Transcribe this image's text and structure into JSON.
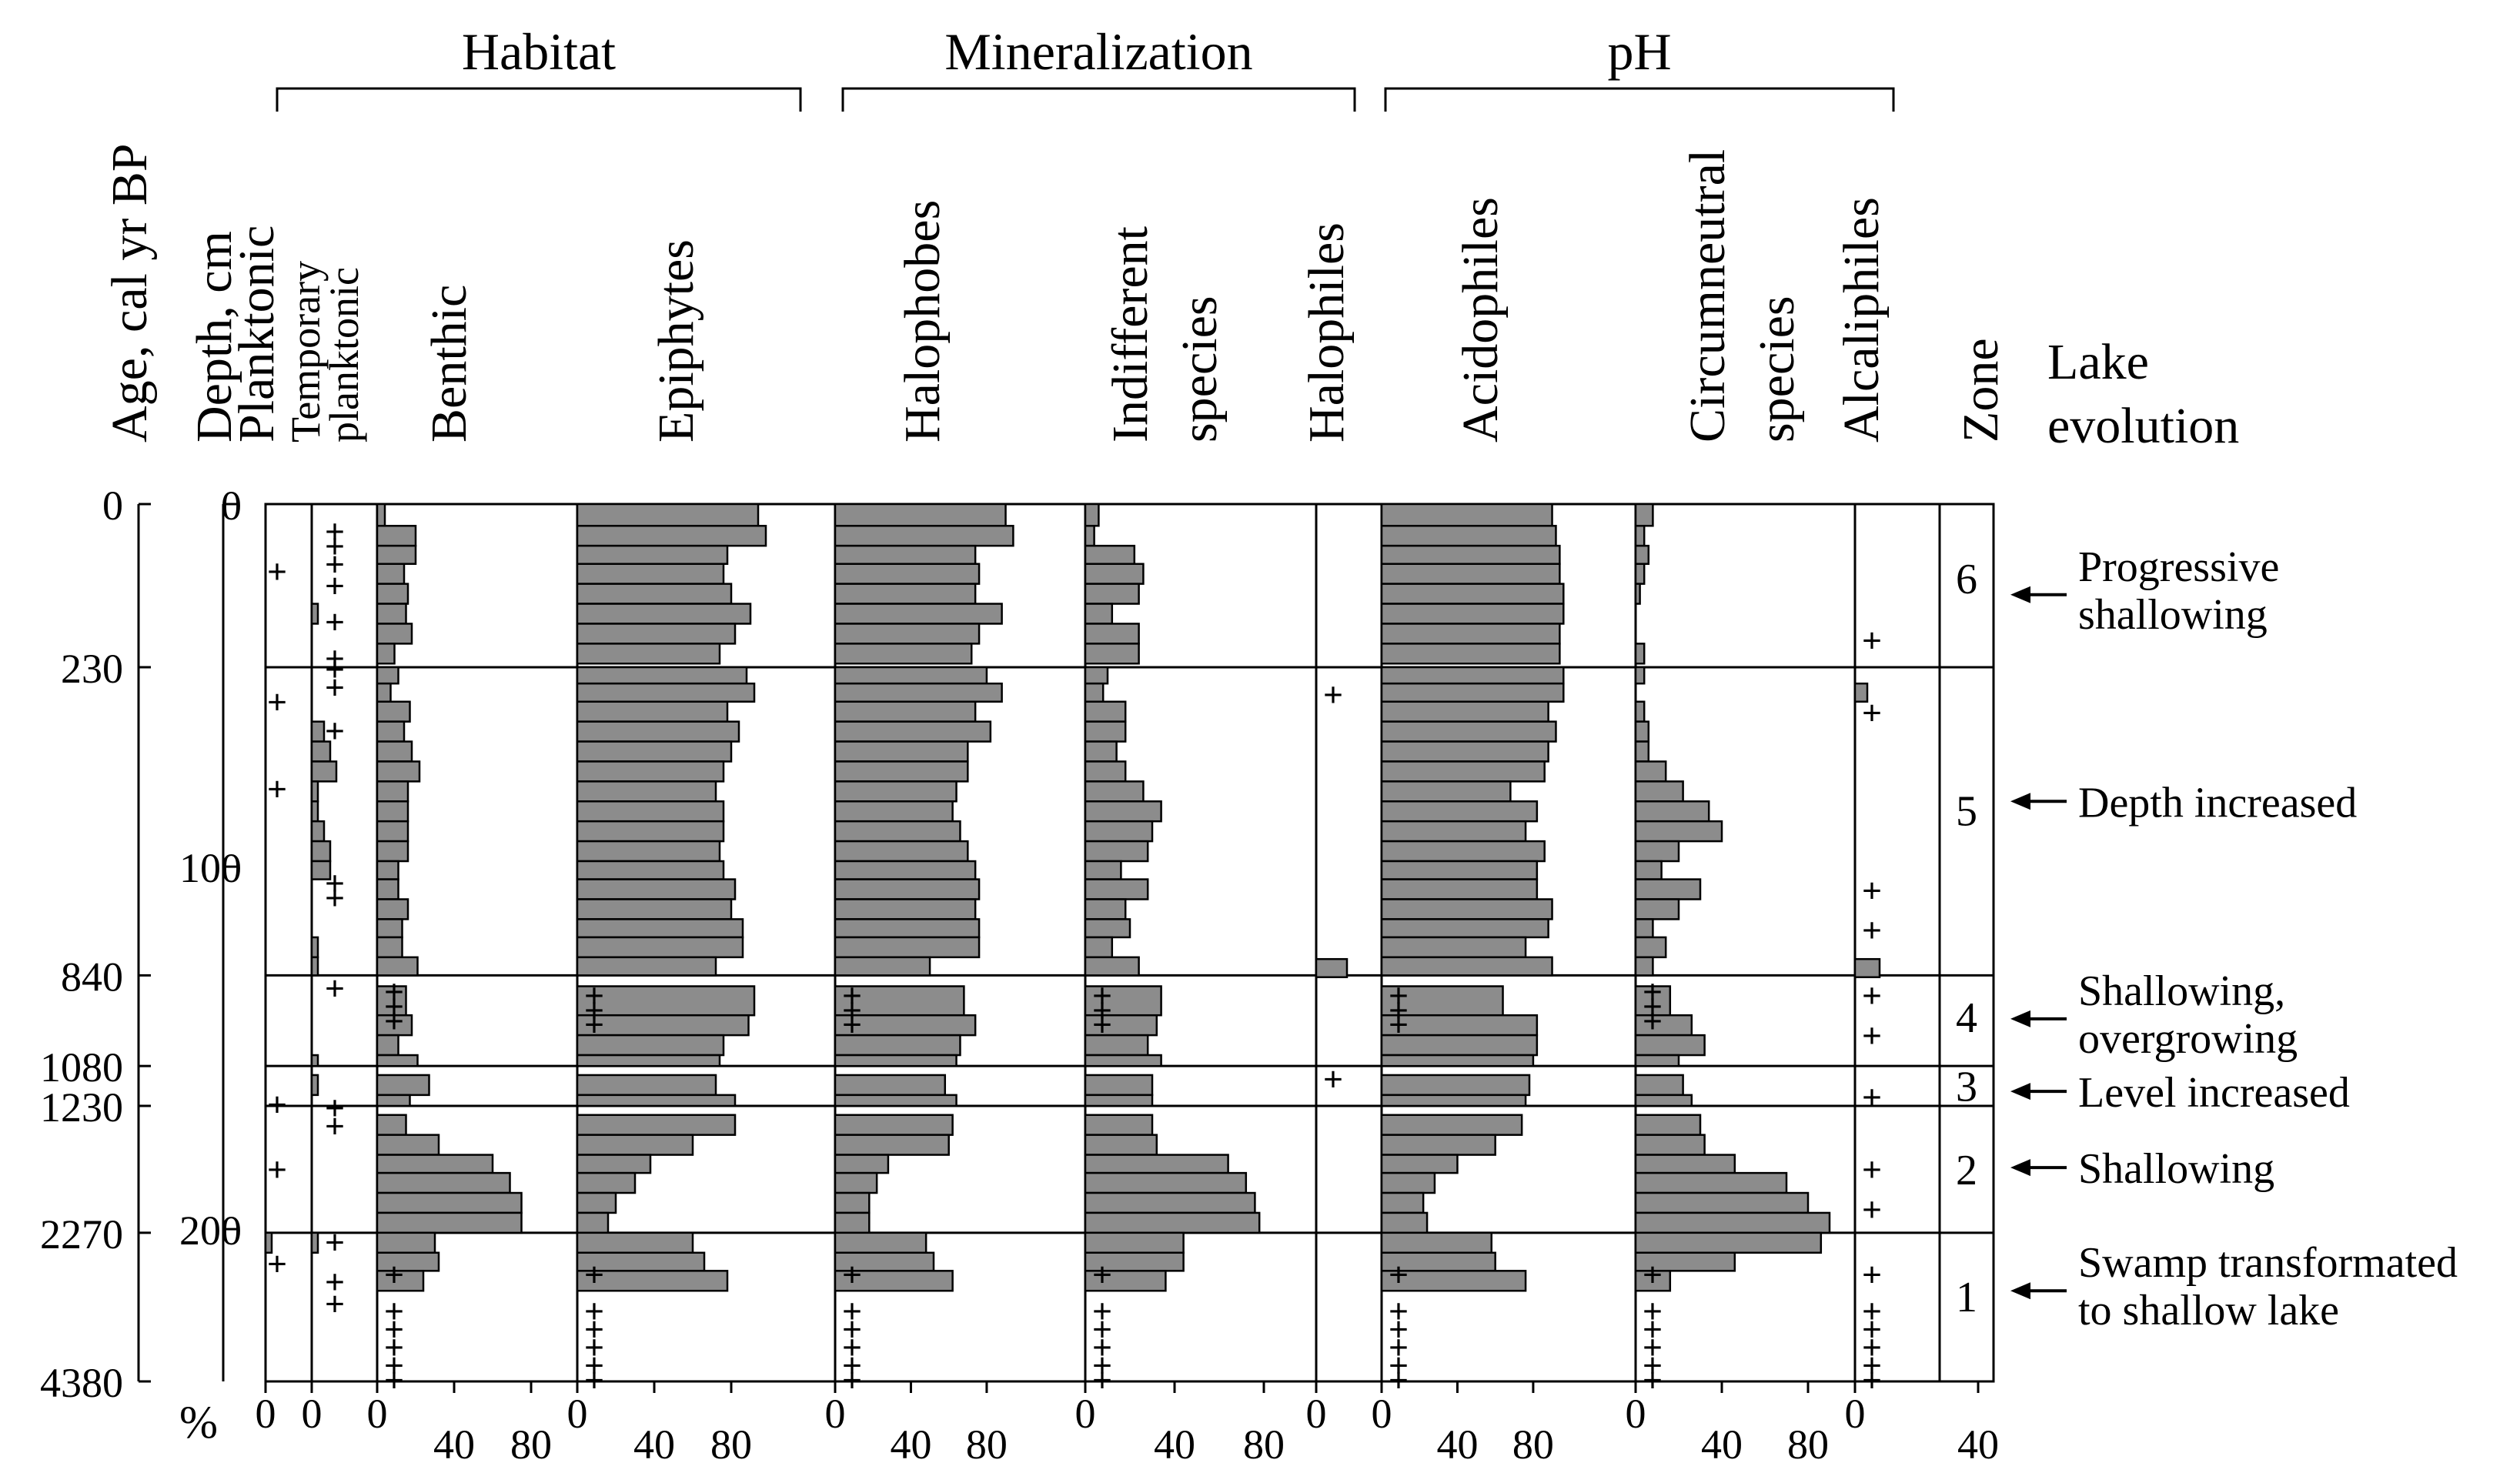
{
  "chart_data": {
    "type": "bar",
    "subtype": "stratigraphic diatom diagram (horizontal bars per sample)",
    "colors": {
      "bar_fill": "#8c8c8c",
      "stroke": "#000000",
      "background": "#ffffff"
    },
    "axis_labels": {
      "age": "Age, cal yr BP",
      "depth": "Depth, cm",
      "zone": "Zone",
      "lake_evolution": "Lake evolution",
      "percent": "%"
    },
    "groups": [
      "Habitat",
      "Mineralization",
      "pH"
    ],
    "age_ticks": [
      {
        "depth": 0,
        "label": "0"
      },
      {
        "depth": 45,
        "label": "230"
      },
      {
        "depth": 130,
        "label": "840"
      },
      {
        "depth": 155,
        "label": "1080"
      },
      {
        "depth": 166,
        "label": "1230"
      },
      {
        "depth": 201,
        "label": "2270"
      },
      {
        "depth": 242,
        "label": "4380"
      }
    ],
    "depth_ticks": [
      {
        "depth": 0,
        "label": "0"
      },
      {
        "depth": 100,
        "label": "100"
      },
      {
        "depth": 200,
        "label": "200"
      }
    ],
    "zone_boundaries": [
      45,
      130,
      155,
      166,
      201
    ],
    "zone_band_limits": [
      [
        0,
        45
      ],
      [
        45,
        130
      ],
      [
        130,
        155
      ],
      [
        155,
        166
      ],
      [
        166,
        201
      ],
      [
        201,
        242
      ]
    ],
    "zones": [
      {
        "label": "6",
        "depth": 20,
        "event": "Progressive shallowing",
        "event_depth": 25
      },
      {
        "label": "5",
        "depth": 84,
        "event": "Depth increased",
        "event_depth": 82
      },
      {
        "label": "4",
        "depth": 141,
        "event": "Shallowing, overgrowing",
        "event_depth": 142
      },
      {
        "label": "3",
        "depth": 160,
        "event": "Level increased",
        "event_depth": 162
      },
      {
        "label": "2",
        "depth": 183,
        "event": "Shallowing",
        "event_depth": 183
      },
      {
        "label": "1",
        "depth": 218,
        "event": "Swamp transformated to shallow lake",
        "event_depth": 217
      }
    ],
    "sample_depths": [
      3,
      9,
      14,
      19,
      25,
      30,
      36,
      41,
      47,
      52,
      57,
      63,
      68,
      74,
      79,
      85,
      90,
      96,
      101,
      106,
      112,
      117,
      122,
      128,
      138,
      144,
      149,
      155,
      160,
      166,
      171,
      177,
      182,
      187,
      193,
      198,
      204,
      209,
      214
    ],
    "trace_depths": [
      136,
      140,
      147,
      166,
      206,
      211,
      221,
      225,
      230,
      234,
      238
    ],
    "columns": [
      {
        "id": "planktonic",
        "name": "Planktonic",
        "group": "Habitat",
        "max": 10,
        "ticks": [
          {
            "v": 0,
            "label": "0"
          }
        ],
        "values": [
          0,
          0,
          0,
          0,
          0,
          0,
          0,
          0,
          0,
          0,
          0,
          0,
          0,
          0,
          0,
          0,
          0,
          0,
          0,
          0,
          0,
          0,
          0,
          0,
          0,
          0,
          0,
          0,
          0,
          0,
          0,
          0,
          0,
          0,
          0,
          0,
          1,
          0,
          0
        ],
        "plus": [
          18,
          54,
          78,
          165,
          183,
          209
        ]
      },
      {
        "id": "temporary_planktonic",
        "name": "Temporary planktonic",
        "group": "Habitat",
        "max": 10,
        "ticks": [
          {
            "v": 0,
            "label": "0"
          }
        ],
        "values": [
          0,
          0,
          0,
          0,
          0,
          1,
          0,
          0,
          0,
          0,
          0,
          2,
          3,
          4,
          1,
          1,
          2,
          3,
          3,
          0,
          0,
          0,
          1,
          1,
          0,
          0,
          0,
          1,
          1,
          0,
          0,
          0,
          0,
          0,
          0,
          0,
          1,
          0,
          0
        ],
        "plus": [
          7,
          11,
          16,
          22,
          32,
          42,
          45,
          50,
          62,
          104,
          108,
          133,
          166,
          171,
          203,
          214,
          220
        ]
      },
      {
        "id": "benthic",
        "name": "Benthic",
        "group": "Habitat",
        "max": 100,
        "ticks": [
          {
            "v": 0,
            "label": "0"
          },
          {
            "v": 40,
            "label": "40"
          },
          {
            "v": 80,
            "label": "80"
          }
        ],
        "values": [
          4,
          20,
          20,
          14,
          16,
          15,
          18,
          9,
          11,
          7,
          17,
          14,
          18,
          22,
          16,
          16,
          16,
          16,
          11,
          11,
          16,
          13,
          13,
          21,
          15,
          18,
          11,
          21,
          27,
          17,
          15,
          32,
          60,
          69,
          75,
          75,
          30,
          32,
          24
        ],
        "plus": [
          134,
          138,
          142,
          212,
          222,
          227,
          232,
          237,
          241
        ]
      },
      {
        "id": "epiphytes",
        "name": "Epiphytes",
        "group": "Habitat",
        "max": 130,
        "ticks": [
          {
            "v": 0,
            "label": "0"
          },
          {
            "v": 40,
            "label": "40"
          },
          {
            "v": 80,
            "label": "80"
          }
        ],
        "values": [
          94,
          98,
          78,
          76,
          80,
          90,
          82,
          74,
          88,
          92,
          78,
          84,
          80,
          76,
          72,
          76,
          76,
          74,
          76,
          82,
          80,
          86,
          86,
          72,
          92,
          89,
          76,
          74,
          72,
          82,
          82,
          60,
          38,
          30,
          20,
          16,
          60,
          66,
          78
        ],
        "plus": [
          135,
          139,
          143,
          212,
          222,
          227,
          232,
          237,
          241
        ]
      },
      {
        "id": "halophobes",
        "name": "Halophobes",
        "group": "Mineralization",
        "max": 130,
        "ticks": [
          {
            "v": 0,
            "label": "0"
          },
          {
            "v": 40,
            "label": "40"
          },
          {
            "v": 80,
            "label": "80"
          }
        ],
        "values": [
          90,
          94,
          74,
          76,
          74,
          88,
          76,
          72,
          80,
          88,
          74,
          82,
          70,
          70,
          64,
          62,
          66,
          70,
          74,
          76,
          74,
          76,
          76,
          50,
          68,
          74,
          66,
          64,
          58,
          64,
          62,
          60,
          28,
          22,
          18,
          18,
          48,
          52,
          62
        ],
        "plus": [
          135,
          139,
          143,
          212,
          222,
          227,
          232,
          237,
          241
        ]
      },
      {
        "id": "indifferent",
        "name": "Indifferent species",
        "group": "Mineralization",
        "max": 100,
        "ticks": [
          {
            "v": 0,
            "label": "0"
          },
          {
            "v": 40,
            "label": "40"
          },
          {
            "v": 80,
            "label": "80"
          }
        ],
        "values": [
          6,
          4,
          22,
          26,
          24,
          12,
          24,
          24,
          10,
          8,
          18,
          18,
          14,
          18,
          26,
          34,
          30,
          28,
          16,
          28,
          18,
          20,
          12,
          24,
          34,
          32,
          28,
          34,
          30,
          30,
          30,
          32,
          64,
          72,
          76,
          78,
          44,
          44,
          36
        ],
        "plus": [
          135,
          139,
          143,
          212,
          222,
          227,
          232,
          237,
          241
        ]
      },
      {
        "id": "halophiles",
        "name": "Halophiles",
        "group": "Mineralization",
        "max": 40,
        "ticks": [
          {
            "v": 0,
            "label": "0"
          }
        ],
        "values": [
          0,
          0,
          0,
          0,
          0,
          0,
          0,
          0,
          0,
          0,
          0,
          0,
          0,
          0,
          0,
          0,
          0,
          0,
          0,
          0,
          0,
          0,
          0,
          0,
          0,
          0,
          0,
          0,
          0,
          0,
          0,
          0,
          0,
          0,
          0,
          0,
          0,
          0,
          0
        ],
        "bars_override": [
          {
            "depth": 128,
            "value": 10
          }
        ],
        "plus": [
          52,
          158
        ]
      },
      {
        "id": "acidophiles",
        "name": "Acidophiles",
        "group": "pH",
        "max": 130,
        "ticks": [
          {
            "v": 0,
            "label": "0"
          },
          {
            "v": 40,
            "label": "40"
          },
          {
            "v": 80,
            "label": "80"
          }
        ],
        "values": [
          90,
          92,
          94,
          94,
          96,
          96,
          94,
          94,
          96,
          96,
          88,
          92,
          88,
          86,
          68,
          82,
          76,
          86,
          82,
          82,
          90,
          88,
          76,
          90,
          64,
          82,
          82,
          80,
          78,
          76,
          74,
          60,
          40,
          28,
          22,
          24,
          58,
          60,
          76
        ],
        "plus": [
          135,
          139,
          143,
          212,
          222,
          227,
          232,
          237,
          241
        ]
      },
      {
        "id": "circumneutral",
        "name": "Circumneutral species",
        "group": "pH",
        "max": 100,
        "ticks": [
          {
            "v": 0,
            "label": "0"
          },
          {
            "v": 40,
            "label": "40"
          },
          {
            "v": 80,
            "label": "80"
          }
        ],
        "values": [
          8,
          4,
          6,
          4,
          2,
          0,
          0,
          4,
          4,
          0,
          4,
          6,
          6,
          14,
          22,
          34,
          40,
          20,
          12,
          30,
          20,
          8,
          14,
          8,
          16,
          26,
          32,
          20,
          22,
          26,
          30,
          32,
          46,
          70,
          80,
          90,
          86,
          46,
          16
        ],
        "plus": [
          134,
          138,
          142,
          212,
          222,
          227,
          232,
          237,
          241
        ]
      },
      {
        "id": "alcaliphiles",
        "name": "Alcaliphiles",
        "group": "pH",
        "max": 40,
        "ticks": [
          {
            "v": 0,
            "label": "0"
          },
          {
            "v": 40,
            "label": "40"
          }
        ],
        "values": [
          0,
          0,
          0,
          0,
          0,
          0,
          0,
          0,
          0,
          0,
          0,
          0,
          0,
          0,
          0,
          0,
          0,
          0,
          0,
          0,
          0,
          0,
          0,
          0,
          0,
          0,
          0,
          0,
          0,
          0,
          0,
          0,
          0,
          0,
          0,
          0,
          0,
          0,
          0
        ],
        "bars_override": [
          {
            "depth": 52,
            "value": 4
          },
          {
            "depth": 128,
            "value": 8
          }
        ],
        "plus": [
          37,
          57,
          106,
          117,
          135,
          146,
          163,
          183,
          194,
          212,
          222,
          227,
          232,
          237,
          241
        ]
      }
    ]
  }
}
